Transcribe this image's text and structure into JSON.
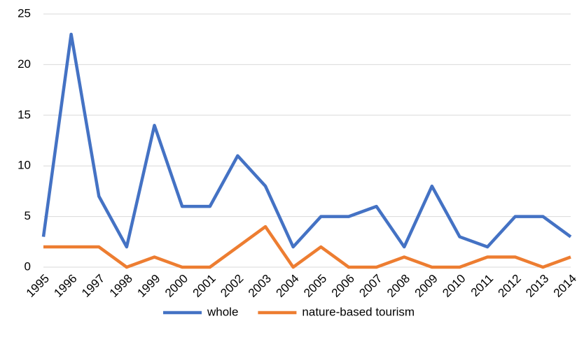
{
  "chart_data": {
    "type": "line",
    "categories": [
      "1995",
      "1996",
      "1997",
      "1998",
      "1999",
      "2000",
      "2001",
      "2002",
      "2003",
      "2004",
      "2005",
      "2006",
      "2007",
      "2008",
      "2009",
      "2010",
      "2011",
      "2012",
      "2013",
      "2014"
    ],
    "series": [
      {
        "name": "whole",
        "color": "#4472c4",
        "values": [
          3,
          23,
          7,
          2,
          14,
          6,
          6,
          11,
          8,
          2,
          5,
          5,
          6,
          2,
          8,
          3,
          2,
          5,
          5,
          3
        ]
      },
      {
        "name": "nature-based tourism",
        "color": "#ed7d31",
        "values": [
          2,
          2,
          2,
          0,
          1,
          0,
          0,
          2,
          4,
          0,
          2,
          0,
          0,
          1,
          0,
          0,
          1,
          1,
          0,
          1
        ]
      }
    ],
    "ylim": [
      0,
      25
    ],
    "yticks": [
      0,
      5,
      10,
      15,
      20,
      25
    ],
    "grid": true,
    "legend": "bottom"
  }
}
